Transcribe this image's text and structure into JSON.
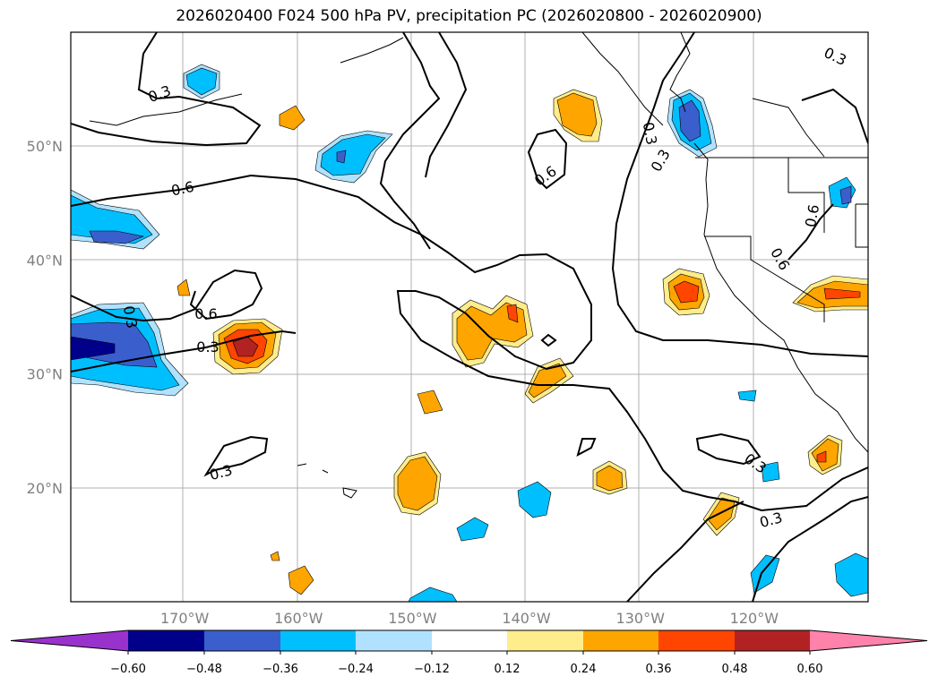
{
  "title": "2026020400 F024 500 hPa PV, precipitation PC (2026020800 - 2026020900)",
  "map": {
    "lon_range": [
      -180,
      -110
    ],
    "lat_range": [
      10,
      60
    ],
    "lat_ticks": [
      {
        "value": 50,
        "label": "50°N"
      },
      {
        "value": 40,
        "label": "40°N"
      },
      {
        "value": 30,
        "label": "30°N"
      },
      {
        "value": 20,
        "label": "20°N"
      }
    ],
    "lon_ticks": [
      {
        "value": -170,
        "label": "170°W"
      },
      {
        "value": -160,
        "label": "160°W"
      },
      {
        "value": -150,
        "label": "150°W"
      },
      {
        "value": -140,
        "label": "140°W"
      },
      {
        "value": -130,
        "label": "130°W"
      },
      {
        "value": -120,
        "label": "120°W"
      }
    ],
    "contour_labels": [
      "0.3",
      "0.6",
      "0.6",
      "0.3",
      "0.3",
      "0.6",
      "0.3",
      "0.3",
      "0.3",
      "0.3",
      "0.6",
      "0.6",
      "0.3",
      "0.3"
    ]
  },
  "colorbar": {
    "ticks": [
      "−0.60",
      "−0.48",
      "−0.36",
      "−0.24",
      "−0.12",
      "0.12",
      "0.24",
      "0.36",
      "0.48",
      "0.60"
    ],
    "colors": [
      "#9932cc",
      "#00008b",
      "#3a5fcd",
      "#00bfff",
      "#b0e2ff",
      "#ffffff",
      "#ffec8b",
      "#ffa500",
      "#ff4500",
      "#b22222",
      "#ff82ab"
    ]
  }
}
